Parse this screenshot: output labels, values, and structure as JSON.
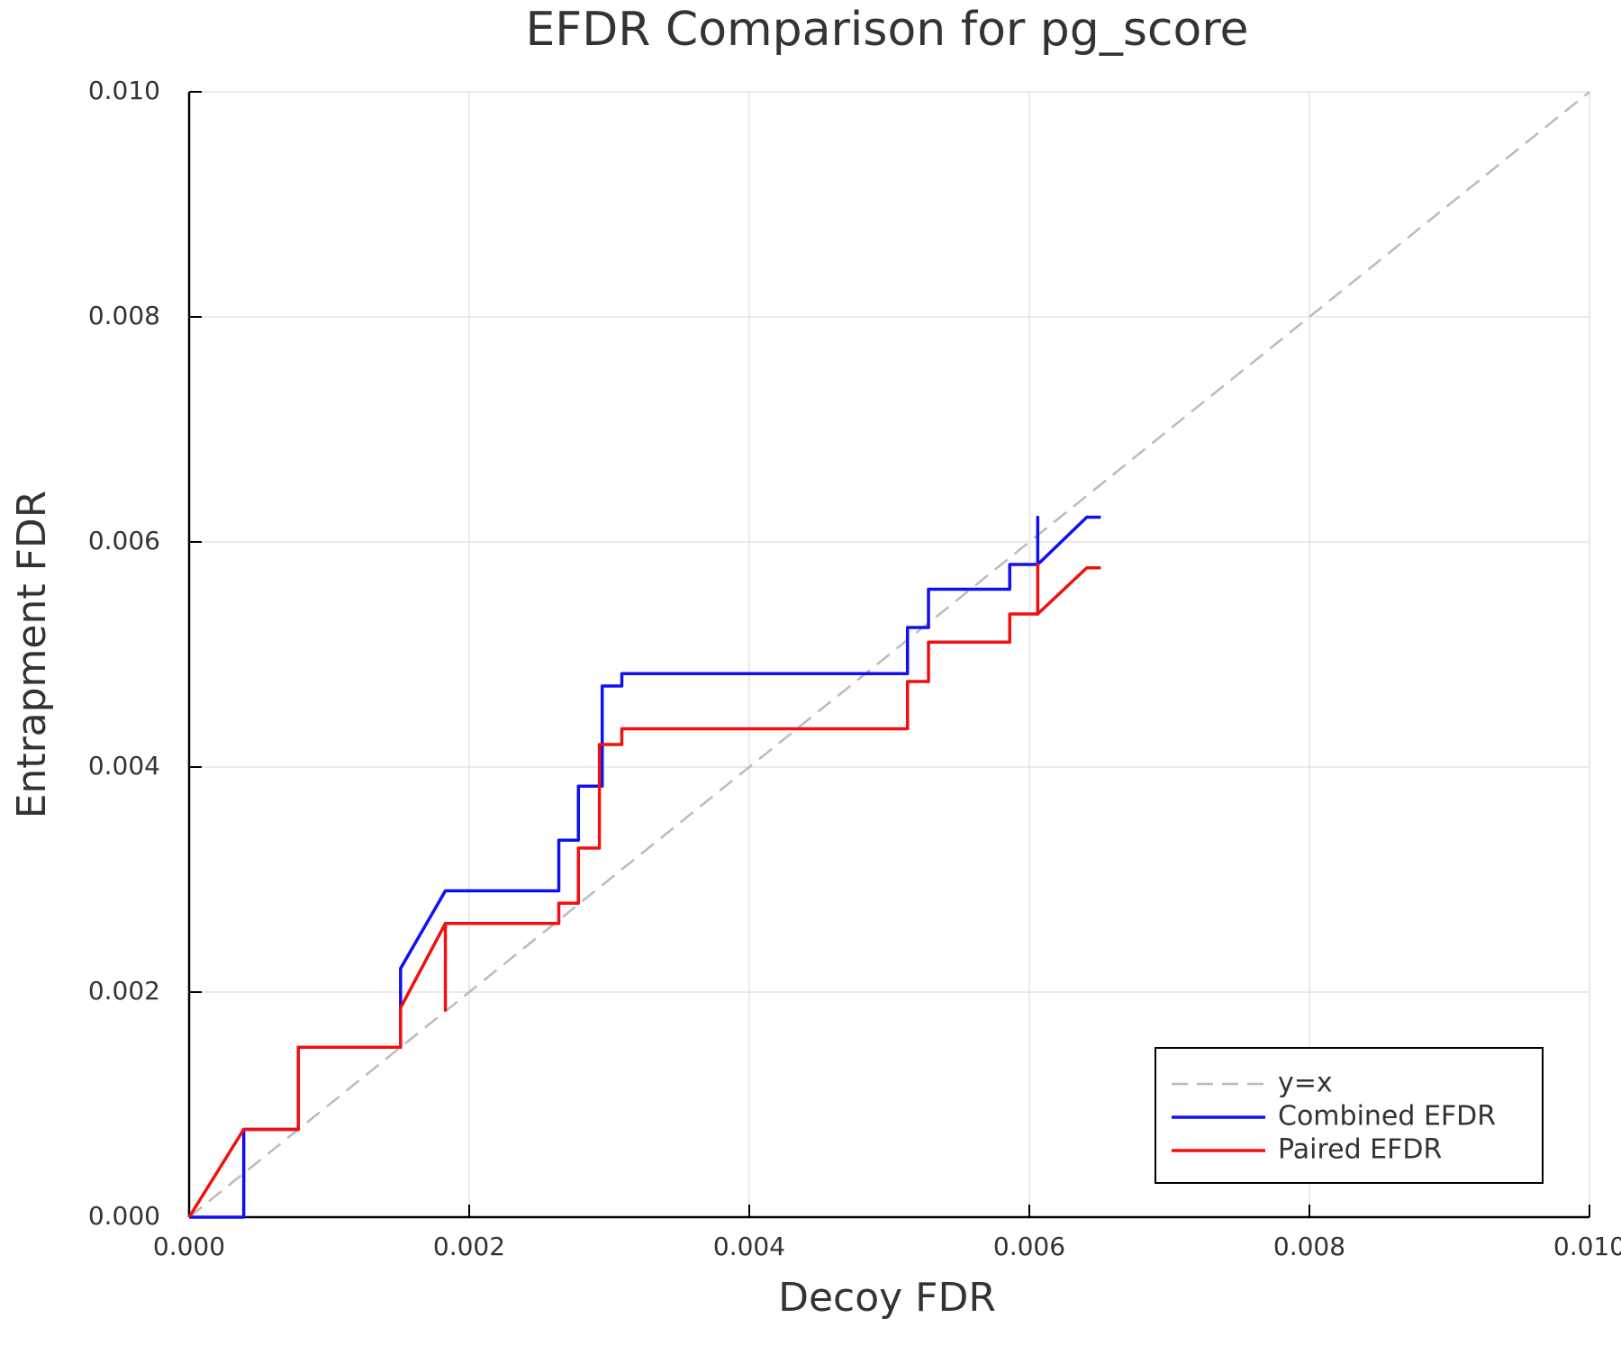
{
  "chart_data": {
    "type": "line",
    "title": "EFDR Comparison for pg_score",
    "x_label": "Decoy FDR",
    "y_label": "Entrapment FDR",
    "xlim": [
      0,
      0.01
    ],
    "ylim": [
      0,
      0.01
    ],
    "xticks": [
      {
        "value": 0,
        "label": "0.000"
      },
      {
        "value": 0.002,
        "label": "0.002"
      },
      {
        "value": 0.004,
        "label": "0.004"
      },
      {
        "value": 0.006,
        "label": "0.006"
      },
      {
        "value": 0.008,
        "label": "0.008"
      },
      {
        "value": 0.01,
        "label": "0.010"
      }
    ],
    "yticks": [
      {
        "value": 0,
        "label": "0.000"
      },
      {
        "value": 0.002,
        "label": "0.002"
      },
      {
        "value": 0.004,
        "label": "0.004"
      },
      {
        "value": 0.006,
        "label": "0.006"
      },
      {
        "value": 0.008,
        "label": "0.008"
      },
      {
        "value": 0.01,
        "label": "0.010"
      }
    ],
    "grid": true,
    "legend": "lower right",
    "series": [
      {
        "name": "y=x",
        "color": "#bbbbbb",
        "dashed": true,
        "x": [
          0,
          0.01
        ],
        "values": [
          0,
          0.01
        ]
      },
      {
        "name": "Combined EFDR",
        "color": "#1010f0",
        "dashed": false,
        "x": [
          0,
          0.00039,
          0.00039,
          0.00078,
          0.00078,
          0.00151,
          0.00151,
          0.00183,
          0.00264,
          0.00264,
          0.00278,
          0.00278,
          0.00295,
          0.00295,
          0.00309,
          0.00309,
          0.00513,
          0.00513,
          0.00528,
          0.00528,
          0.00586,
          0.00586,
          0.00606,
          0.00606,
          0.00606,
          0.00641,
          0.00651
        ],
        "values": [
          0,
          0,
          0.00078,
          0.00078,
          0.00151,
          0.00151,
          0.00221,
          0.0029,
          0.0029,
          0.00335,
          0.00335,
          0.00383,
          0.00383,
          0.00472,
          0.00472,
          0.00483,
          0.00483,
          0.00524,
          0.00524,
          0.00558,
          0.00558,
          0.0058,
          0.0058,
          0.00622,
          0.0058,
          0.00622,
          0.00622
        ]
      },
      {
        "name": "Paired EFDR",
        "color": "#f01010",
        "dashed": false,
        "x": [
          0,
          0.00039,
          0.00078,
          0.00078,
          0.00151,
          0.00151,
          0.00183,
          0.00183,
          0.00183,
          0.00264,
          0.00264,
          0.00278,
          0.00278,
          0.00293,
          0.00293,
          0.00309,
          0.00309,
          0.00513,
          0.00513,
          0.00528,
          0.00528,
          0.00586,
          0.00586,
          0.00606,
          0.00606,
          0.00606,
          0.00641,
          0.00651
        ],
        "values": [
          0,
          0.00078,
          0.00078,
          0.00151,
          0.00151,
          0.00186,
          0.00261,
          0.00184,
          0.00261,
          0.00261,
          0.00279,
          0.00279,
          0.00328,
          0.00328,
          0.0042,
          0.0042,
          0.00434,
          0.00434,
          0.00476,
          0.00476,
          0.00511,
          0.00511,
          0.00536,
          0.00536,
          0.0058,
          0.00536,
          0.00577,
          0.00577
        ]
      }
    ]
  }
}
